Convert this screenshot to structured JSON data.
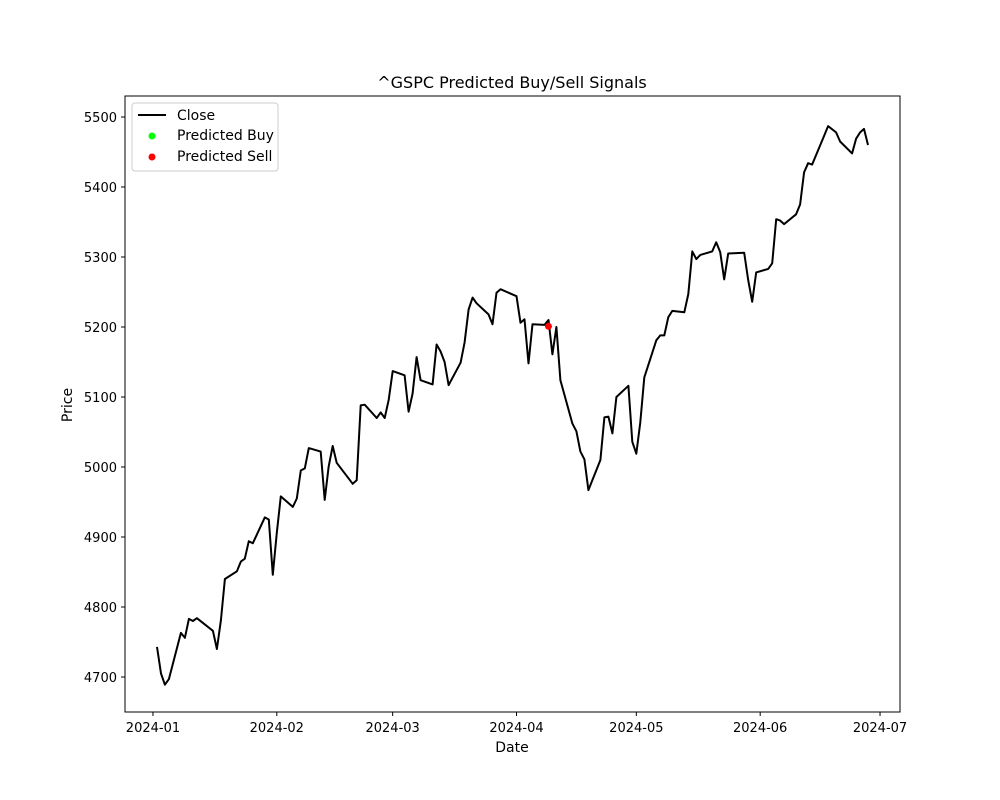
{
  "chart_data": {
    "type": "line",
    "title": "^GSPC Predicted Buy/Sell Signals",
    "xlabel": "Date",
    "ylabel": "Price",
    "xlim": [
      "2023-12-25",
      "2024-07-06"
    ],
    "ylim": [
      4650,
      5530
    ],
    "x_ticks": [
      "2024-01",
      "2024-02",
      "2024-03",
      "2024-04",
      "2024-05",
      "2024-06",
      "2024-07"
    ],
    "y_ticks": [
      4700,
      4800,
      4900,
      5000,
      5100,
      5200,
      5300,
      5400,
      5500
    ],
    "grid": false,
    "legend_position": "upper-left",
    "series": [
      {
        "name": "Close",
        "kind": "line",
        "color": "#000000",
        "x": [
          "2024-01-02",
          "2024-01-03",
          "2024-01-04",
          "2024-01-05",
          "2024-01-08",
          "2024-01-09",
          "2024-01-10",
          "2024-01-11",
          "2024-01-12",
          "2024-01-16",
          "2024-01-17",
          "2024-01-18",
          "2024-01-19",
          "2024-01-22",
          "2024-01-23",
          "2024-01-24",
          "2024-01-25",
          "2024-01-26",
          "2024-01-29",
          "2024-01-30",
          "2024-01-31",
          "2024-02-01",
          "2024-02-02",
          "2024-02-05",
          "2024-02-06",
          "2024-02-07",
          "2024-02-08",
          "2024-02-09",
          "2024-02-12",
          "2024-02-13",
          "2024-02-14",
          "2024-02-15",
          "2024-02-16",
          "2024-02-20",
          "2024-02-21",
          "2024-02-22",
          "2024-02-23",
          "2024-02-26",
          "2024-02-27",
          "2024-02-28",
          "2024-02-29",
          "2024-03-01",
          "2024-03-04",
          "2024-03-05",
          "2024-03-06",
          "2024-03-07",
          "2024-03-08",
          "2024-03-11",
          "2024-03-12",
          "2024-03-13",
          "2024-03-14",
          "2024-03-15",
          "2024-03-18",
          "2024-03-19",
          "2024-03-20",
          "2024-03-21",
          "2024-03-22",
          "2024-03-25",
          "2024-03-26",
          "2024-03-27",
          "2024-03-28",
          "2024-04-01",
          "2024-04-02",
          "2024-04-03",
          "2024-04-04",
          "2024-04-05",
          "2024-04-08",
          "2024-04-09",
          "2024-04-10",
          "2024-04-11",
          "2024-04-12",
          "2024-04-15",
          "2024-04-16",
          "2024-04-17",
          "2024-04-18",
          "2024-04-19",
          "2024-04-22",
          "2024-04-23",
          "2024-04-24",
          "2024-04-25",
          "2024-04-26",
          "2024-04-29",
          "2024-04-30",
          "2024-05-01",
          "2024-05-02",
          "2024-05-03",
          "2024-05-06",
          "2024-05-07",
          "2024-05-08",
          "2024-05-09",
          "2024-05-10",
          "2024-05-13",
          "2024-05-14",
          "2024-05-15",
          "2024-05-16",
          "2024-05-17",
          "2024-05-20",
          "2024-05-21",
          "2024-05-22",
          "2024-05-23",
          "2024-05-24",
          "2024-05-28",
          "2024-05-29",
          "2024-05-30",
          "2024-05-31",
          "2024-06-03",
          "2024-06-04",
          "2024-06-05",
          "2024-06-06",
          "2024-06-07",
          "2024-06-10",
          "2024-06-11",
          "2024-06-12",
          "2024-06-13",
          "2024-06-14",
          "2024-06-17",
          "2024-06-18",
          "2024-06-20",
          "2024-06-21",
          "2024-06-24",
          "2024-06-25",
          "2024-06-26",
          "2024-06-27",
          "2024-06-28"
        ],
        "y": [
          4743,
          4705,
          4689,
          4697,
          4763,
          4756,
          4783,
          4780,
          4784,
          4766,
          4740,
          4781,
          4840,
          4851,
          4865,
          4869,
          4894,
          4891,
          4928,
          4925,
          4846,
          4906,
          4958,
          4943,
          4955,
          4995,
          4998,
          5027,
          5022,
          4953,
          5001,
          5030,
          5006,
          4976,
          4981,
          5088,
          5089,
          5070,
          5078,
          5070,
          5096,
          5137,
          5131,
          5079,
          5105,
          5157,
          5124,
          5118,
          5175,
          5165,
          5150,
          5117,
          5149,
          5178,
          5225,
          5242,
          5234,
          5218,
          5204,
          5249,
          5254,
          5244,
          5206,
          5211,
          5148,
          5204,
          5203,
          5210,
          5161,
          5200,
          5124,
          5062,
          5051,
          5022,
          5011,
          4967,
          5010,
          5071,
          5072,
          5048,
          5100,
          5116,
          5036,
          5019,
          5064,
          5128,
          5181,
          5188,
          5188,
          5214,
          5223,
          5221,
          5247,
          5308,
          5297,
          5303,
          5308,
          5321,
          5307,
          5268,
          5305,
          5306,
          5267,
          5236,
          5278,
          5283,
          5291,
          5354,
          5352,
          5347,
          5361,
          5375,
          5421,
          5434,
          5432,
          5473,
          5487,
          5478,
          5465,
          5448,
          5469,
          5478,
          5483,
          5460
        ]
      },
      {
        "name": "Predicted Buy",
        "kind": "scatter",
        "color": "#00ff00",
        "x": [],
        "y": []
      },
      {
        "name": "Predicted Sell",
        "kind": "scatter",
        "color": "#ff0000",
        "x": [
          "2024-04-09"
        ],
        "y": [
          5201
        ]
      }
    ]
  }
}
